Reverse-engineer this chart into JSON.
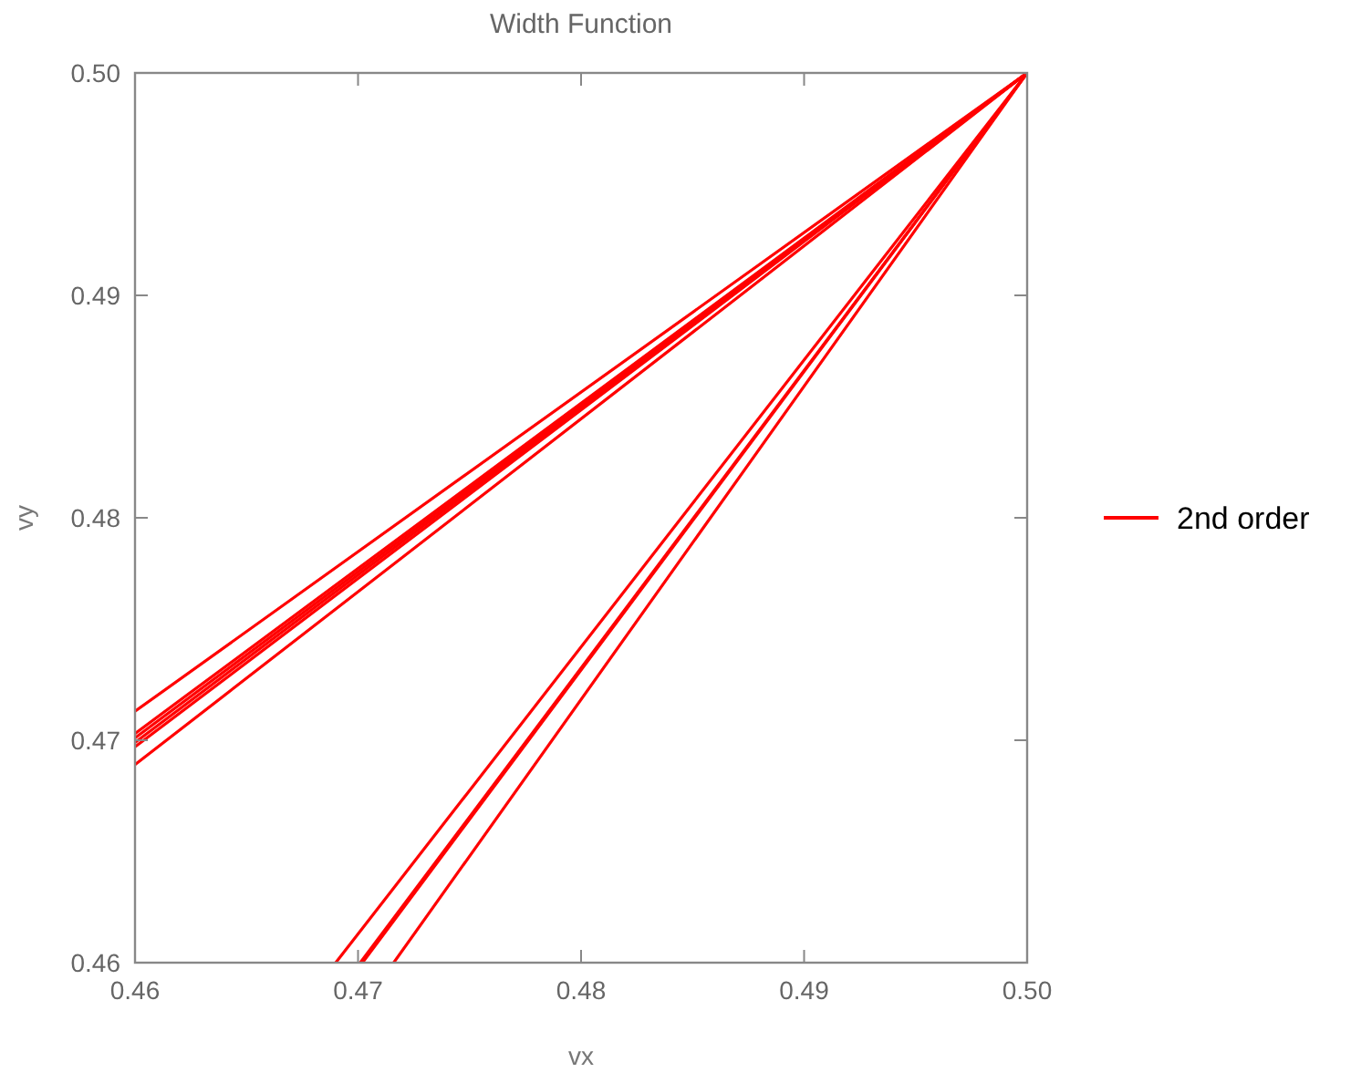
{
  "chart_data": {
    "type": "line",
    "title": "Width Function",
    "xlabel": "vx",
    "ylabel": "vy",
    "xlim": [
      0.46,
      0.5
    ],
    "ylim": [
      0.46,
      0.5
    ],
    "xticks": [
      0.46,
      0.47,
      0.48,
      0.49,
      {
        "value": 0.5,
        "label": "0.50"
      }
    ],
    "yticks": [
      0.46,
      0.47,
      0.48,
      0.49,
      {
        "value": 0.5,
        "label": "0.50"
      }
    ],
    "grid": false,
    "legend": "right",
    "marker": "none",
    "line_style": "solid",
    "series": [
      {
        "name": "2nd order",
        "color": "#ff0000",
        "x": [
          0.46,
          0.5
        ],
        "values": [
          0.4713,
          0.5
        ]
      },
      {
        "color": "#ff0000",
        "x": [
          0.46,
          0.5
        ],
        "values": [
          0.4697,
          0.5
        ]
      },
      {
        "color": "#ff0000",
        "x": [
          0.46,
          0.5
        ],
        "values": [
          0.4699,
          0.5
        ]
      },
      {
        "color": "#ff0000",
        "x": [
          0.46,
          0.5
        ],
        "values": [
          0.4701,
          0.5
        ]
      },
      {
        "color": "#ff0000",
        "x": [
          0.46,
          0.5
        ],
        "values": [
          0.4703,
          0.5
        ]
      },
      {
        "color": "#ff0000",
        "x": [
          0.46,
          0.5
        ],
        "values": [
          0.4689,
          0.5
        ]
      },
      {
        "color": "#ff0000",
        "x": [
          0.469,
          0.5
        ],
        "values": [
          0.46,
          0.5
        ]
      },
      {
        "color": "#ff0000",
        "x": [
          0.4701,
          0.5
        ],
        "values": [
          0.46,
          0.5
        ]
      },
      {
        "color": "#ff0000",
        "x": [
          0.4702,
          0.5
        ],
        "values": [
          0.46,
          0.5
        ]
      },
      {
        "color": "#ff0000",
        "x": [
          0.4716,
          0.5
        ],
        "values": [
          0.46,
          0.5
        ]
      }
    ]
  }
}
